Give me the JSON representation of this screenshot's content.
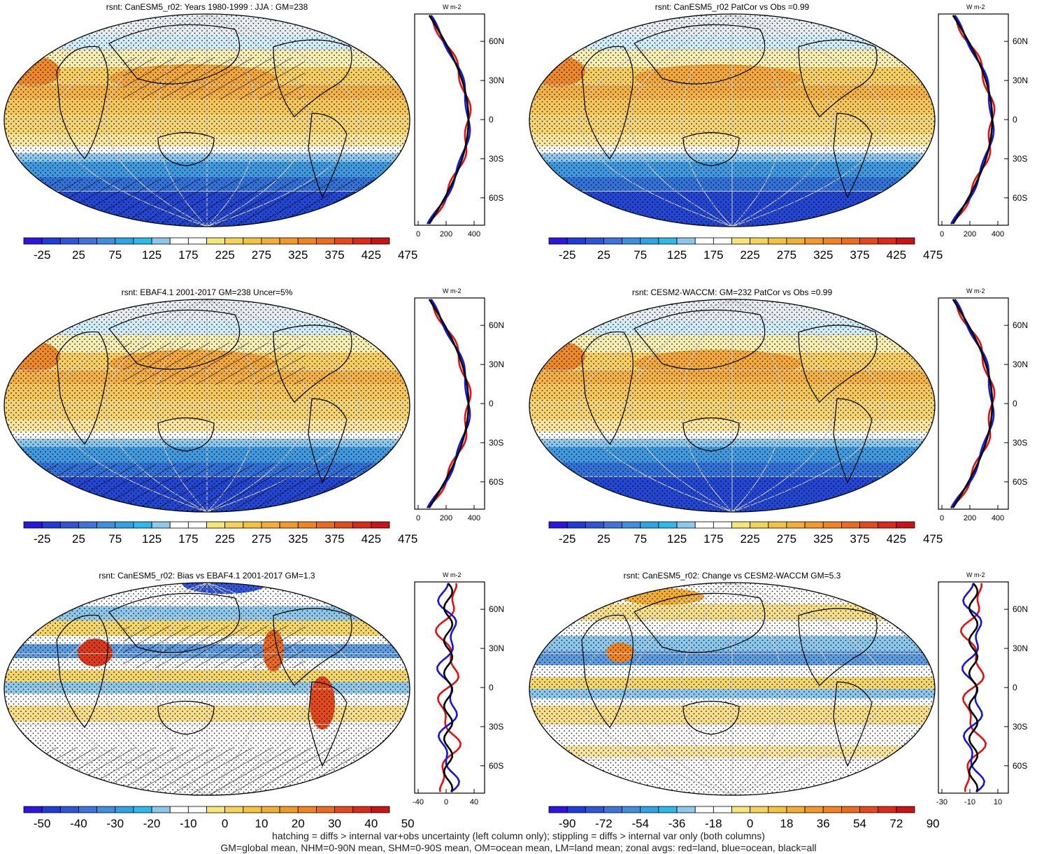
{
  "panels": [
    {
      "title": "rsnt: CanESM5_r02: Years 1980-1999 : JJA : GM=238",
      "kind": "abs",
      "hatched": true,
      "colorbar": {
        "ticks": [
          "-25",
          "25",
          "75",
          "125",
          "175",
          "225",
          "275",
          "325",
          "375",
          "425",
          "475"
        ]
      },
      "zonal": {
        "xticks": [
          "0",
          "200",
          "400"
        ],
        "unit": "W m-2",
        "lat_ticks": [
          "60N",
          "30N",
          "0",
          "30S",
          "60S"
        ]
      }
    },
    {
      "title": "rsnt: CanESM5_r02 PatCor vs Obs =0.99",
      "kind": "abs",
      "hatched": false,
      "colorbar": {
        "ticks": [
          "-25",
          "25",
          "75",
          "125",
          "175",
          "225",
          "275",
          "325",
          "375",
          "425",
          "475"
        ]
      },
      "zonal": {
        "xticks": [
          "0",
          "200",
          "400"
        ],
        "unit": "W m-2",
        "lat_ticks": [
          "60N",
          "30N",
          "0",
          "30S",
          "60S"
        ]
      }
    },
    {
      "title": "rsnt: EBAF4.1 2001-2017 GM=238 Uncer=5%",
      "kind": "abs",
      "hatched": true,
      "colorbar": {
        "ticks": [
          "-25",
          "25",
          "75",
          "125",
          "175",
          "225",
          "275",
          "325",
          "375",
          "425",
          "475"
        ]
      },
      "zonal": {
        "xticks": [
          "0",
          "200",
          "400"
        ],
        "unit": "W m-2",
        "lat_ticks": [
          "60N",
          "30N",
          "0",
          "30S",
          "60S"
        ]
      }
    },
    {
      "title": "rsnt: CESM2-WACCM: GM=232 PatCor vs Obs =0.99",
      "kind": "abs",
      "hatched": false,
      "colorbar": {
        "ticks": [
          "-25",
          "25",
          "75",
          "125",
          "175",
          "225",
          "275",
          "325",
          "375",
          "425",
          "475"
        ]
      },
      "zonal": {
        "xticks": [
          "0",
          "200",
          "400"
        ],
        "unit": "W m-2",
        "lat_ticks": [
          "60N",
          "30N",
          "0",
          "30S",
          "60S"
        ]
      }
    },
    {
      "title": "rsnt: CanESM5_r02: Bias vs EBAF4.1 2001-2017 GM=1.3",
      "kind": "bias",
      "hatched": true,
      "colorbar": {
        "ticks": [
          "-50",
          "-40",
          "-30",
          "-20",
          "-10",
          "0",
          "10",
          "20",
          "30",
          "40",
          "50"
        ]
      },
      "zonal": {
        "xticks": [
          "-40",
          "0",
          "40"
        ],
        "unit": "W m-2",
        "lat_ticks": [
          "60N",
          "30N",
          "0",
          "30S",
          "60S"
        ]
      }
    },
    {
      "title": "rsnt: CanESM5_r02: Change vs CESM2-WACCM GM=5.3",
      "kind": "change",
      "hatched": false,
      "colorbar": {
        "ticks": [
          "-90",
          "-72",
          "-54",
          "-36",
          "-18",
          "0",
          "18",
          "36",
          "54",
          "72",
          "90"
        ]
      },
      "zonal": {
        "xticks": [
          "-30",
          "-10",
          "10"
        ],
        "unit": "W m-2",
        "lat_ticks": [
          "60N",
          "30N",
          "0",
          "30S",
          "60S"
        ]
      }
    }
  ],
  "colorbar_colors": [
    "#2b16e0",
    "#1f3cd8",
    "#2e55d6",
    "#3f74d9",
    "#3e8fdc",
    "#2ea5e2",
    "#2eb8ec",
    "#8cc7ec",
    "#ffffff",
    "#ffffff",
    "#f5e67a",
    "#f5d35a",
    "#f4c240",
    "#f3ae36",
    "#f2992c",
    "#ef8420",
    "#eb6b1f",
    "#e4491c",
    "#dd2a18",
    "#c81414"
  ],
  "footer": {
    "line1": "hatching = diffs > internal var+obs uncertainty (left column only); stippling = diffs > internal var only (both columns)",
    "line2": "GM=global mean, NHM=0-90N mean, SHM=0-90S mean, OM=ocean mean, LM=land mean; zonal avgs: red=land, blue=ocean, black=all"
  }
}
